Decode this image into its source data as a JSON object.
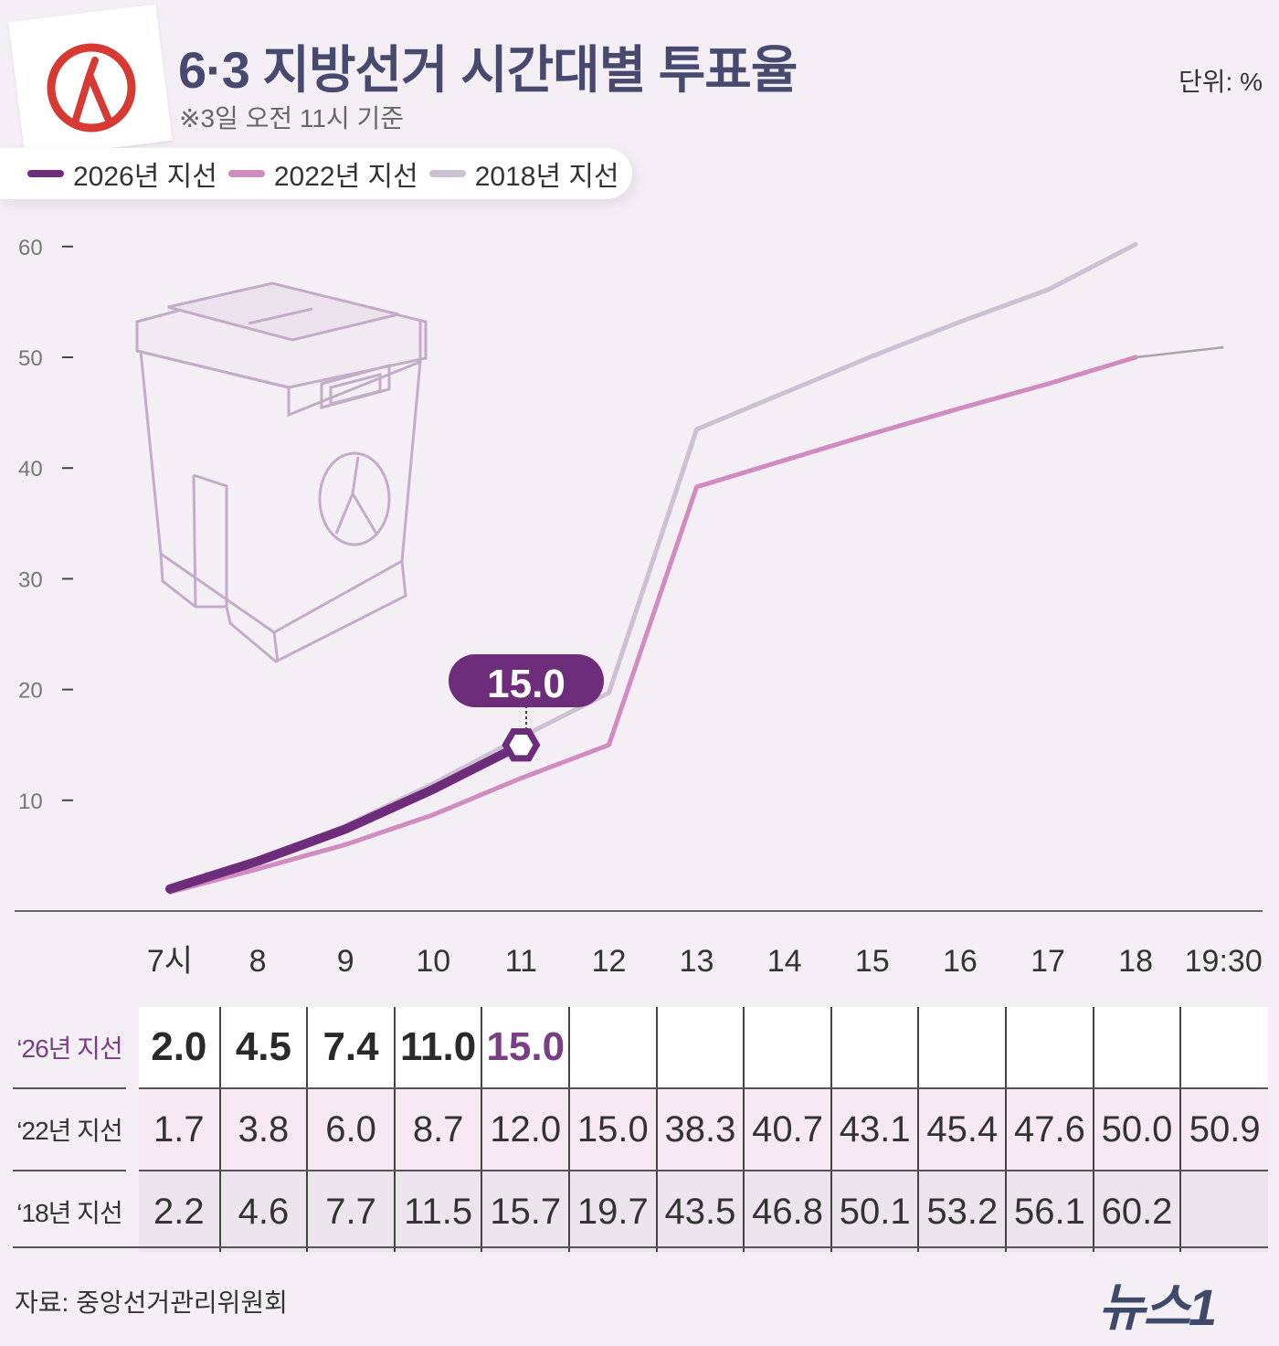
{
  "header": {
    "title": "6·3 지방선거 시간대별 투표율",
    "subtitle": "※3일 오전 11시 기준",
    "unit": "단위: %"
  },
  "legend": [
    {
      "label": "2026년 지선",
      "color": "#6e2d7a"
    },
    {
      "label": "2022년 지선",
      "color": "#d08cc0"
    },
    {
      "label": "2018년 지선",
      "color": "#cdc0d3"
    }
  ],
  "callout": {
    "value": "15.0"
  },
  "chart_data": {
    "type": "line",
    "x": [
      "7시",
      "8",
      "9",
      "10",
      "11",
      "12",
      "13",
      "14",
      "15",
      "16",
      "17",
      "18",
      "19:30"
    ],
    "y_ticks": [
      10,
      20,
      30,
      40,
      50,
      60
    ],
    "ylim": [
      0,
      60
    ],
    "grid": false,
    "legend_position": "top-left",
    "series": [
      {
        "name": "2026년 지선",
        "color": "#6e2d7a",
        "values": [
          2.0,
          4.5,
          7.4,
          11.0,
          15.0,
          null,
          null,
          null,
          null,
          null,
          null,
          null,
          null
        ]
      },
      {
        "name": "2022년 지선",
        "color": "#d08cc0",
        "values": [
          1.7,
          3.8,
          6.0,
          8.7,
          12.0,
          15.0,
          38.3,
          40.7,
          43.1,
          45.4,
          47.6,
          50.0,
          50.9
        ]
      },
      {
        "name": "2018년 지선",
        "color": "#cdc0d3",
        "values": [
          2.2,
          4.6,
          7.7,
          11.5,
          15.7,
          19.7,
          43.5,
          46.8,
          50.1,
          53.2,
          56.1,
          60.2,
          null
        ]
      }
    ]
  },
  "table": {
    "rows": [
      {
        "label": "‘26년 지선",
        "values": [
          "2.0",
          "4.5",
          "7.4",
          "11.0",
          "15.0",
          "",
          "",
          "",
          "",
          "",
          "",
          "",
          ""
        ]
      },
      {
        "label": "‘22년 지선",
        "values": [
          "1.7",
          "3.8",
          "6.0",
          "8.7",
          "12.0",
          "15.0",
          "38.3",
          "40.7",
          "43.1",
          "45.4",
          "47.6",
          "50.0",
          "50.9"
        ]
      },
      {
        "label": "‘18년 지선",
        "values": [
          "2.2",
          "4.6",
          "7.7",
          "11.5",
          "15.7",
          "19.7",
          "43.5",
          "46.8",
          "50.1",
          "53.2",
          "56.1",
          "60.2",
          ""
        ]
      }
    ]
  },
  "footer": {
    "source": "자료: 중앙선거관리위원회",
    "logo": "뉴스1"
  },
  "colors": {
    "accent": "#6e2d7a",
    "title": "#474a6e",
    "logo_orange": "#ee6a2c"
  }
}
